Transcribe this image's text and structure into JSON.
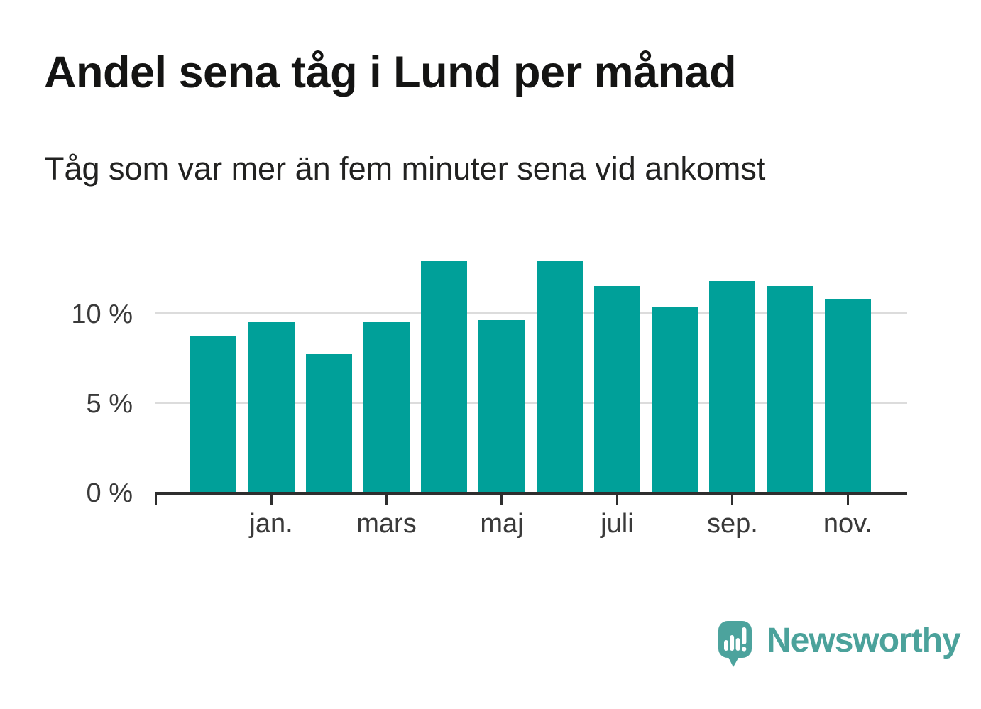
{
  "header": {
    "title": "Andel sena tåg i Lund per månad",
    "subtitle": "Tåg som var mer än fem minuter sena vid ankomst"
  },
  "chart_data": {
    "type": "bar",
    "title": "Andel sena tåg i Lund per månad",
    "subtitle": "Tåg som var mer än fem minuter sena vid ankomst",
    "unit": "%",
    "values": [
      8.7,
      9.5,
      7.7,
      9.5,
      12.9,
      9.6,
      12.9,
      11.5,
      10.3,
      11.8,
      11.5,
      10.8
    ],
    "x_tick_labels": [
      "jan.",
      "mars",
      "maj",
      "juli",
      "sep.",
      "nov."
    ],
    "x_tick_bar_indexes": [
      1,
      3,
      5,
      7,
      9,
      11
    ],
    "y_ticks": [
      0,
      5,
      10
    ],
    "y_tick_labels": [
      "0 %",
      "5 %",
      "10 %"
    ],
    "ylim": [
      0,
      13.5
    ],
    "grid": "horizontal-behind-bars",
    "legend": "none",
    "bar_color": "#00A099",
    "axis_color": "#2e2e2e",
    "gridline_color": "#dcdcdc",
    "tick_label_color": "#3a3a3a"
  },
  "footer": {
    "brand": "Newsworthy",
    "brand_color": "#4BA29B",
    "logo_icon": "speech-bubble-bar-chart-exclamation"
  }
}
